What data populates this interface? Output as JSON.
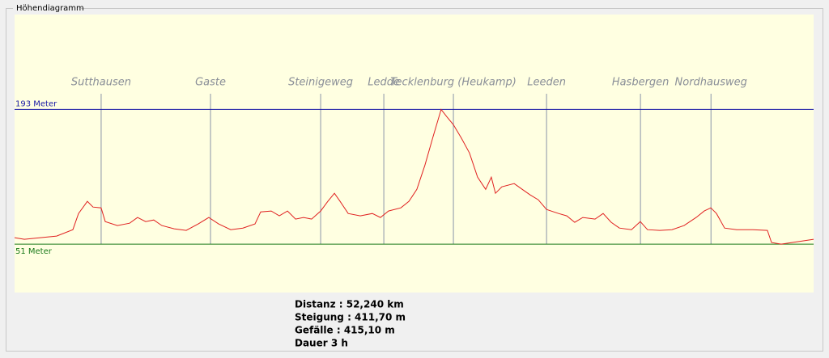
{
  "panel_title": "Höhendiagramm",
  "chart_data": {
    "type": "line",
    "xlim": [
      0,
      52.24
    ],
    "ylim": [
      0,
      293
    ],
    "x": [
      0,
      0.64,
      1.69,
      2.75,
      3.81,
      4.18,
      4.76,
      5.13,
      5.66,
      5.93,
      6.72,
      7.52,
      8.04,
      8.57,
      9.1,
      9.63,
      10.43,
      11.22,
      12.01,
      12.7,
      13.34,
      14.13,
      14.93,
      15.72,
      16.09,
      16.78,
      17.31,
      17.84,
      18.37,
      18.89,
      19.42,
      20.01,
      20.48,
      20.91,
      21.28,
      21.81,
      22.6,
      23.39,
      23.92,
      24.45,
      25.25,
      25.78,
      26.3,
      26.83,
      27.36,
      27.89,
      28.26,
      28.69,
      29.22,
      29.74,
      30.27,
      30.8,
      31.17,
      31.44,
      31.86,
      32.66,
      33.19,
      33.71,
      34.24,
      34.78,
      35.57,
      36.1,
      36.62,
      37.15,
      37.95,
      38.48,
      39.01,
      39.54,
      40.33,
      40.91,
      41.38,
      42.18,
      42.98,
      43.77,
      44.56,
      45.09,
      45.52,
      45.89,
      46.42,
      47.21,
      48.27,
      49.22,
      49.49,
      50.12,
      51.18,
      52.24
    ],
    "series": [
      {
        "color": "#e02020",
        "values": [
          57.8,
          56.1,
          57.8,
          59.5,
          66.3,
          83.3,
          96.1,
          90.1,
          89.3,
          74.8,
          70.6,
          73.1,
          79.1,
          74.8,
          76.5,
          70.6,
          67.2,
          65.5,
          72.3,
          79.1,
          72.3,
          66.3,
          68.0,
          72.3,
          85.0,
          85.9,
          80.8,
          85.9,
          77.4,
          79.1,
          77.4,
          85.9,
          96.1,
          104.6,
          96.1,
          83.3,
          80.8,
          83.3,
          79.1,
          85.9,
          89.3,
          96.1,
          108.8,
          134.3,
          164.1,
          193,
          185.3,
          176.8,
          162.4,
          147.1,
          121.6,
          108.8,
          121.6,
          104.6,
          111.4,
          114.8,
          108.8,
          102.9,
          97.8,
          87.6,
          83.3,
          80.8,
          74.0,
          79.1,
          77.4,
          83.3,
          74.0,
          68.0,
          66.3,
          74.8,
          66.3,
          65.5,
          66.3,
          70.6,
          79.1,
          85.9,
          89.3,
          83.3,
          68.0,
          66.3,
          66.3,
          65.5,
          52.7,
          51,
          53.6,
          56.1
        ]
      }
    ],
    "ref_lines": [
      {
        "value": 193,
        "label": "193 Meter",
        "color": "#1a1aa6"
      },
      {
        "value": 51,
        "label": "51 Meter",
        "color": "#1a7a1a"
      }
    ],
    "waypoints": [
      {
        "label": "Sutthausen",
        "x": 5.66
      },
      {
        "label": "Gaste",
        "x": 12.81
      },
      {
        "label": "Steinigeweg",
        "x": 20.01
      },
      {
        "label": "Ledde",
        "x": 24.14
      },
      {
        "label": "Tecklenburg (Heukamp)",
        "x": 28.69
      },
      {
        "label": "Leeden",
        "x": 34.78
      },
      {
        "label": "Hasbergen",
        "x": 40.92
      },
      {
        "label": "Nordhausweg",
        "x": 45.53
      }
    ]
  },
  "stats": [
    "Distanz : 52,240 km",
    "Steigung : 411,70 m",
    "Gefälle : 415,10 m",
    "Dauer  3 h"
  ]
}
